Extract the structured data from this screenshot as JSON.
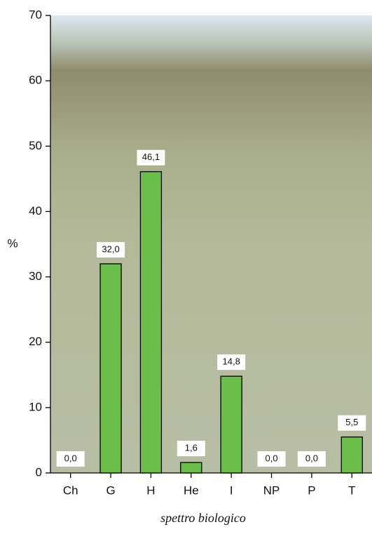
{
  "chart_data": {
    "type": "bar",
    "x_label": "spettro biologico",
    "y_label": "%",
    "categories": [
      "Ch",
      "G",
      "H",
      "He",
      "I",
      "NP",
      "P",
      "T"
    ],
    "values": [
      0.0,
      32.0,
      46.1,
      1.6,
      14.8,
      0.0,
      0.0,
      5.5
    ],
    "value_labels": [
      "0,0",
      "32,0",
      "46,1",
      "1,6",
      "14,8",
      "0,0",
      "0,0",
      "5,5"
    ],
    "color": "#6abf4b",
    "ylim": [
      0,
      70
    ],
    "yticks": [
      0,
      10,
      20,
      30,
      40,
      50,
      60,
      70
    ]
  }
}
